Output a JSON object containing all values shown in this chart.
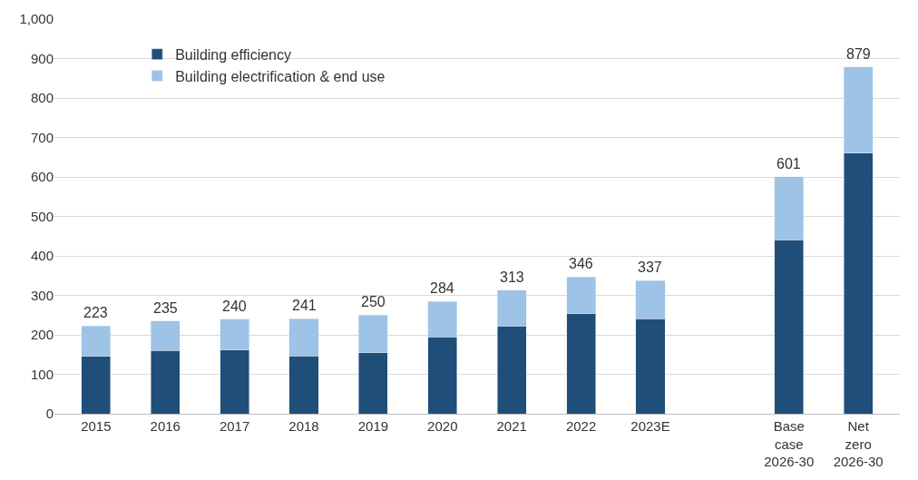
{
  "chart_data": {
    "type": "bar",
    "stacked": true,
    "categories": [
      "2015",
      "2016",
      "2017",
      "2018",
      "2019",
      "2020",
      "2021",
      "2022",
      "2023E",
      null,
      "Base\ncase\n2026-30",
      "Net\nzero\n2026-30"
    ],
    "series": [
      {
        "name": "Building efficiency",
        "color": "#1f4e79",
        "values": [
          145,
          160,
          162,
          146,
          155,
          195,
          223,
          253,
          241,
          null,
          441,
          660
        ]
      },
      {
        "name": "Building electrification & end use",
        "color": "#9dc3e6",
        "values": [
          78,
          75,
          78,
          95,
          95,
          89,
          90,
          93,
          96,
          null,
          160,
          219
        ]
      }
    ],
    "totals": [
      "223",
      "235",
      "240",
      "241",
      "250",
      "284",
      "313",
      "346",
      "337",
      null,
      "601",
      "879"
    ],
    "ylim": [
      0,
      1000
    ],
    "yticks": [
      0,
      100,
      200,
      300,
      400,
      500,
      600,
      700,
      800,
      900,
      {
        "value": 1000,
        "label": "1,000"
      }
    ],
    "grid": "y",
    "legend": "top left"
  }
}
